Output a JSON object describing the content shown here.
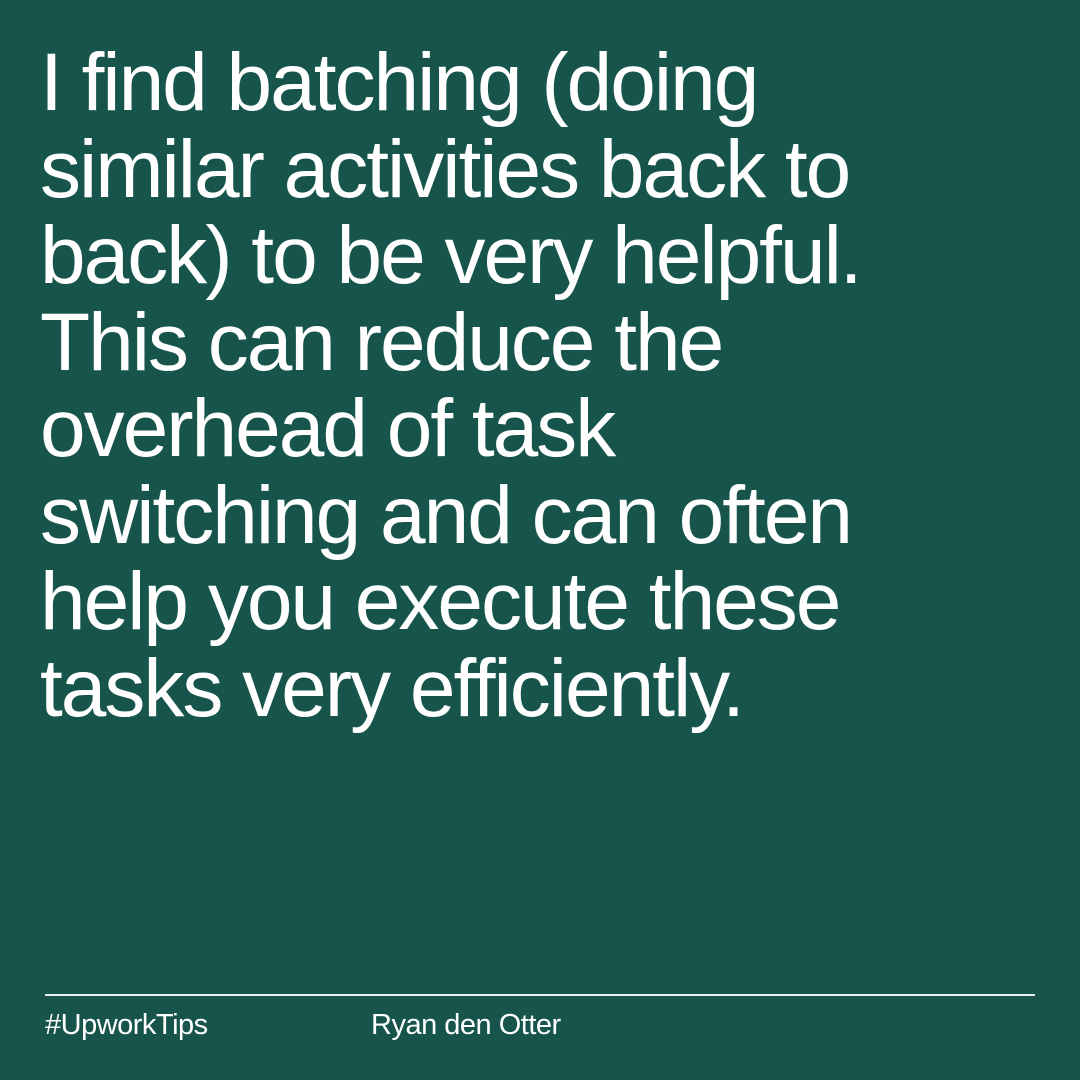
{
  "colors": {
    "background": "#17554c",
    "text": "#ffffff",
    "divider": "#e8efed"
  },
  "quote": {
    "lines": [
      "I find batching (doing",
      "similar activities back to",
      "back) to be very helpful.",
      "This can reduce the",
      "overhead of task",
      "switching and can often",
      "help you execute these",
      "tasks very efficiently."
    ]
  },
  "footer": {
    "hashtag": "#UpworkTips",
    "author": "Ryan den Otter"
  }
}
